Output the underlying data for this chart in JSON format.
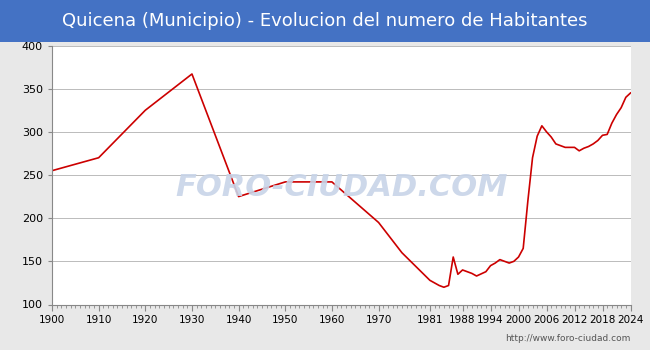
{
  "title": "Quicena (Municipio) - Evolucion del numero de Habitantes",
  "title_fontsize": 13,
  "title_color": "white",
  "title_bg_color": "#4472c4",
  "xlabel": "",
  "ylabel": "",
  "ylim": [
    100,
    400
  ],
  "yticks": [
    100,
    150,
    200,
    250,
    300,
    350,
    400
  ],
  "xticks": [
    1900,
    1910,
    1920,
    1930,
    1940,
    1950,
    1960,
    1970,
    1981,
    1988,
    1994,
    2000,
    2006,
    2012,
    2018,
    2024
  ],
  "line_color": "#cc0000",
  "line_width": 1.2,
  "bg_color": "#e8e8e8",
  "plot_bg_color": "white",
  "grid_color": "#bbbbbb",
  "watermark": "FORO-CIUDAD.COM",
  "watermark_color": "#c8d4e8",
  "url_text": "http://www.foro-ciudad.com",
  "years": [
    1900,
    1910,
    1920,
    1930,
    1940,
    1950,
    1960,
    1970,
    1975,
    1981,
    1983,
    1984,
    1985,
    1986,
    1987,
    1988,
    1989,
    1990,
    1991,
    1993,
    1994,
    1995,
    1996,
    1997,
    1998,
    1999,
    2000,
    2001,
    2002,
    2003,
    2004,
    2005,
    2006,
    2007,
    2008,
    2009,
    2010,
    2011,
    2012,
    2013,
    2014,
    2015,
    2016,
    2017,
    2018,
    2019,
    2020,
    2021,
    2022,
    2023,
    2024
  ],
  "values": [
    255,
    270,
    325,
    367,
    225,
    242,
    242,
    195,
    160,
    128,
    122,
    120,
    122,
    155,
    135,
    140,
    138,
    136,
    133,
    138,
    145,
    148,
    152,
    150,
    148,
    150,
    155,
    165,
    220,
    270,
    295,
    307,
    300,
    294,
    286,
    284,
    282,
    282,
    282,
    278,
    281,
    283,
    286,
    290,
    296,
    297,
    310,
    320,
    328,
    340,
    345
  ]
}
